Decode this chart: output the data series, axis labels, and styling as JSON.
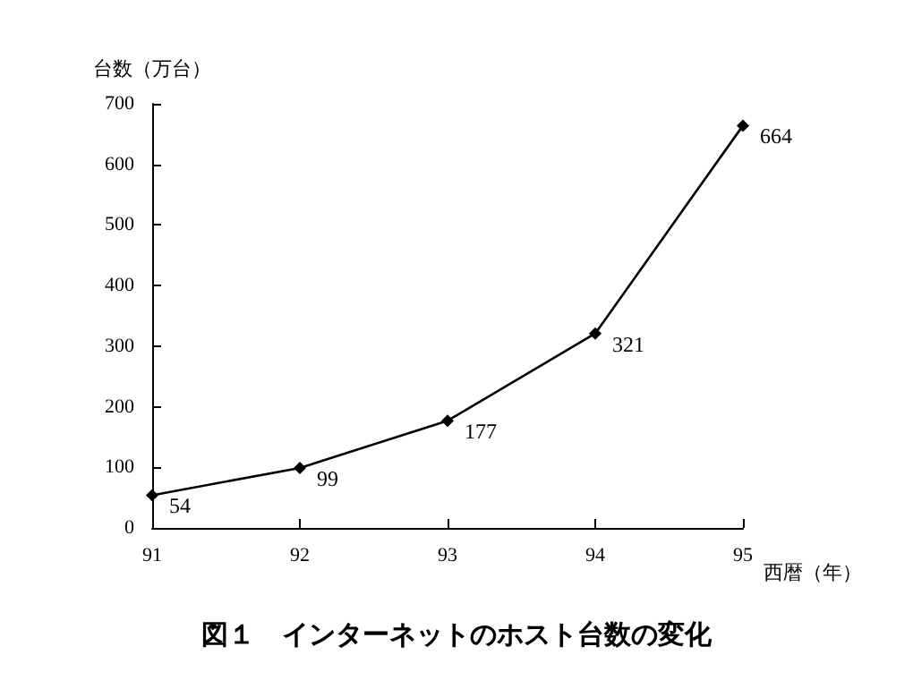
{
  "chart_data": {
    "type": "line",
    "title": "図１　インターネットのホスト台数の変化",
    "xlabel": "西暦（年）",
    "ylabel": "台数（万台）",
    "x": [
      91,
      92,
      93,
      94,
      95
    ],
    "series": [
      {
        "color": "#000000",
        "values": [
          54,
          99,
          177,
          321,
          664
        ]
      }
    ],
    "xlim": [
      91,
      95
    ],
    "xticks": [
      91,
      92,
      93,
      94,
      95
    ],
    "ylim": [
      0,
      700
    ],
    "yticks": [
      0,
      100,
      200,
      300,
      400,
      500,
      600,
      700
    ],
    "marker": "diamond",
    "line_style": "solid",
    "data_labels": true,
    "grid": false
  }
}
